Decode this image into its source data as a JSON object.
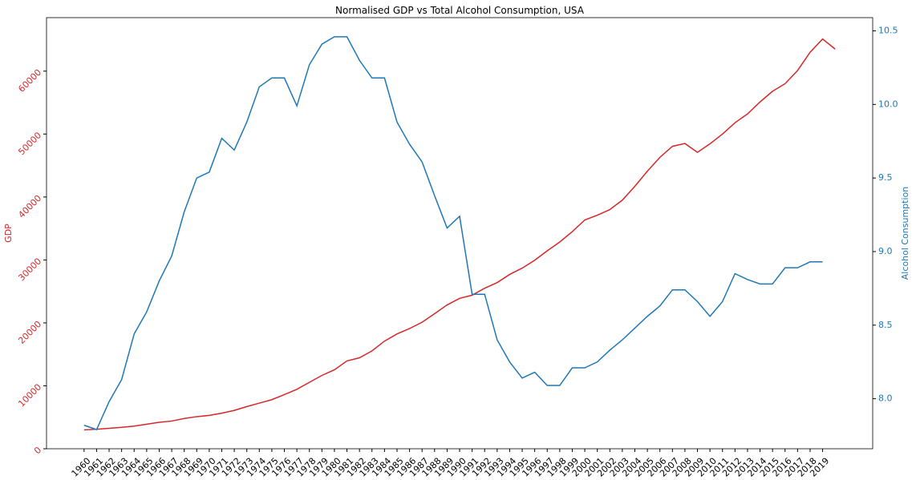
{
  "chart_data": {
    "type": "line",
    "title": "Normalised GDP vs Total Alcohol Consumption, USA",
    "y_label": "GDP",
    "y2_label": "Alcohol Consumption",
    "x": [
      1960,
      1961,
      1962,
      1963,
      1964,
      1965,
      1966,
      1967,
      1968,
      1969,
      1970,
      1971,
      1972,
      1973,
      1974,
      1975,
      1976,
      1977,
      1978,
      1979,
      1980,
      1981,
      1982,
      1983,
      1984,
      1985,
      1986,
      1987,
      1988,
      1989,
      1990,
      1991,
      1992,
      1993,
      1994,
      1995,
      1996,
      1997,
      1998,
      1999,
      2000,
      2001,
      2002,
      2003,
      2004,
      2005,
      2006,
      2007,
      2008,
      2009,
      2010,
      2011,
      2012,
      2013,
      2014,
      2015,
      2016,
      2017,
      2018,
      2019,
      2020
    ],
    "xlim": [
      1957,
      2023
    ],
    "xticks": [
      1960,
      1961,
      1962,
      1963,
      1964,
      1965,
      1966,
      1967,
      1968,
      1969,
      1970,
      1971,
      1972,
      1973,
      1974,
      1975,
      1976,
      1977,
      1978,
      1979,
      1980,
      1981,
      1982,
      1983,
      1984,
      1985,
      1986,
      1987,
      1988,
      1989,
      1990,
      1991,
      1992,
      1993,
      1994,
      1995,
      1996,
      1997,
      1998,
      1999,
      2000,
      2001,
      2002,
      2003,
      2004,
      2005,
      2006,
      2007,
      2008,
      2009,
      2010,
      2011,
      2012,
      2013,
      2014,
      2015,
      2016,
      2017,
      2018,
      2019
    ],
    "ylim": [
      0,
      68500
    ],
    "yticks": [
      0,
      10000,
      20000,
      30000,
      40000,
      50000,
      60000
    ],
    "y2lim": [
      7.66,
      10.59
    ],
    "y2ticks": [
      {
        "value": 8.0,
        "label": "8.0"
      },
      {
        "value": 8.5,
        "label": "8.5"
      },
      {
        "value": 9.0,
        "label": "9.0"
      },
      {
        "value": 9.5,
        "label": "9.5"
      },
      {
        "value": 10.0,
        "label": "10.0"
      },
      {
        "value": 10.5,
        "label": "10.5"
      }
    ],
    "y_color": "#d62728",
    "y2_color": "#1f77b4",
    "series": [
      {
        "name": "GDP",
        "color": "#d62728",
        "axis": "y",
        "values": [
          3000,
          3100,
          3250,
          3400,
          3600,
          3900,
          4200,
          4400,
          4800,
          5100,
          5300,
          5650,
          6100,
          6700,
          7250,
          7800,
          8600,
          9450,
          10550,
          11650,
          12550,
          13950,
          14450,
          15550,
          17100,
          18250,
          19100,
          20100,
          21450,
          22850,
          23900,
          24400,
          25500,
          26400,
          27700,
          28700,
          29950,
          31450,
          32850,
          34500,
          36350,
          37100,
          38000,
          39500,
          41700,
          44100,
          46300,
          48050,
          48500,
          47100,
          48450,
          50000,
          51800,
          53200,
          55100,
          56800,
          58000,
          60100,
          63000,
          65100,
          63500
        ]
      },
      {
        "name": "Alcohol Consumption",
        "color": "#1f77b4",
        "axis": "y2",
        "values": [
          7.82,
          7.79,
          7.98,
          8.13,
          8.44,
          8.59,
          8.8,
          8.97,
          9.27,
          9.5,
          9.54,
          9.77,
          9.69,
          9.88,
          10.12,
          10.18,
          10.18,
          9.99,
          10.27,
          10.41,
          10.46,
          10.46,
          10.3,
          10.18,
          10.18,
          9.88,
          9.73,
          9.61,
          9.38,
          9.16,
          9.24,
          8.71,
          8.71,
          8.4,
          8.25,
          8.14,
          8.18,
          8.09,
          8.09,
          8.21,
          8.21,
          8.25,
          8.33,
          8.4,
          8.48,
          8.56,
          8.63,
          8.74,
          8.74,
          8.66,
          8.56,
          8.66,
          8.85,
          8.81,
          8.78,
          8.78,
          8.89,
          8.89,
          8.93,
          8.93,
          null
        ]
      }
    ]
  }
}
